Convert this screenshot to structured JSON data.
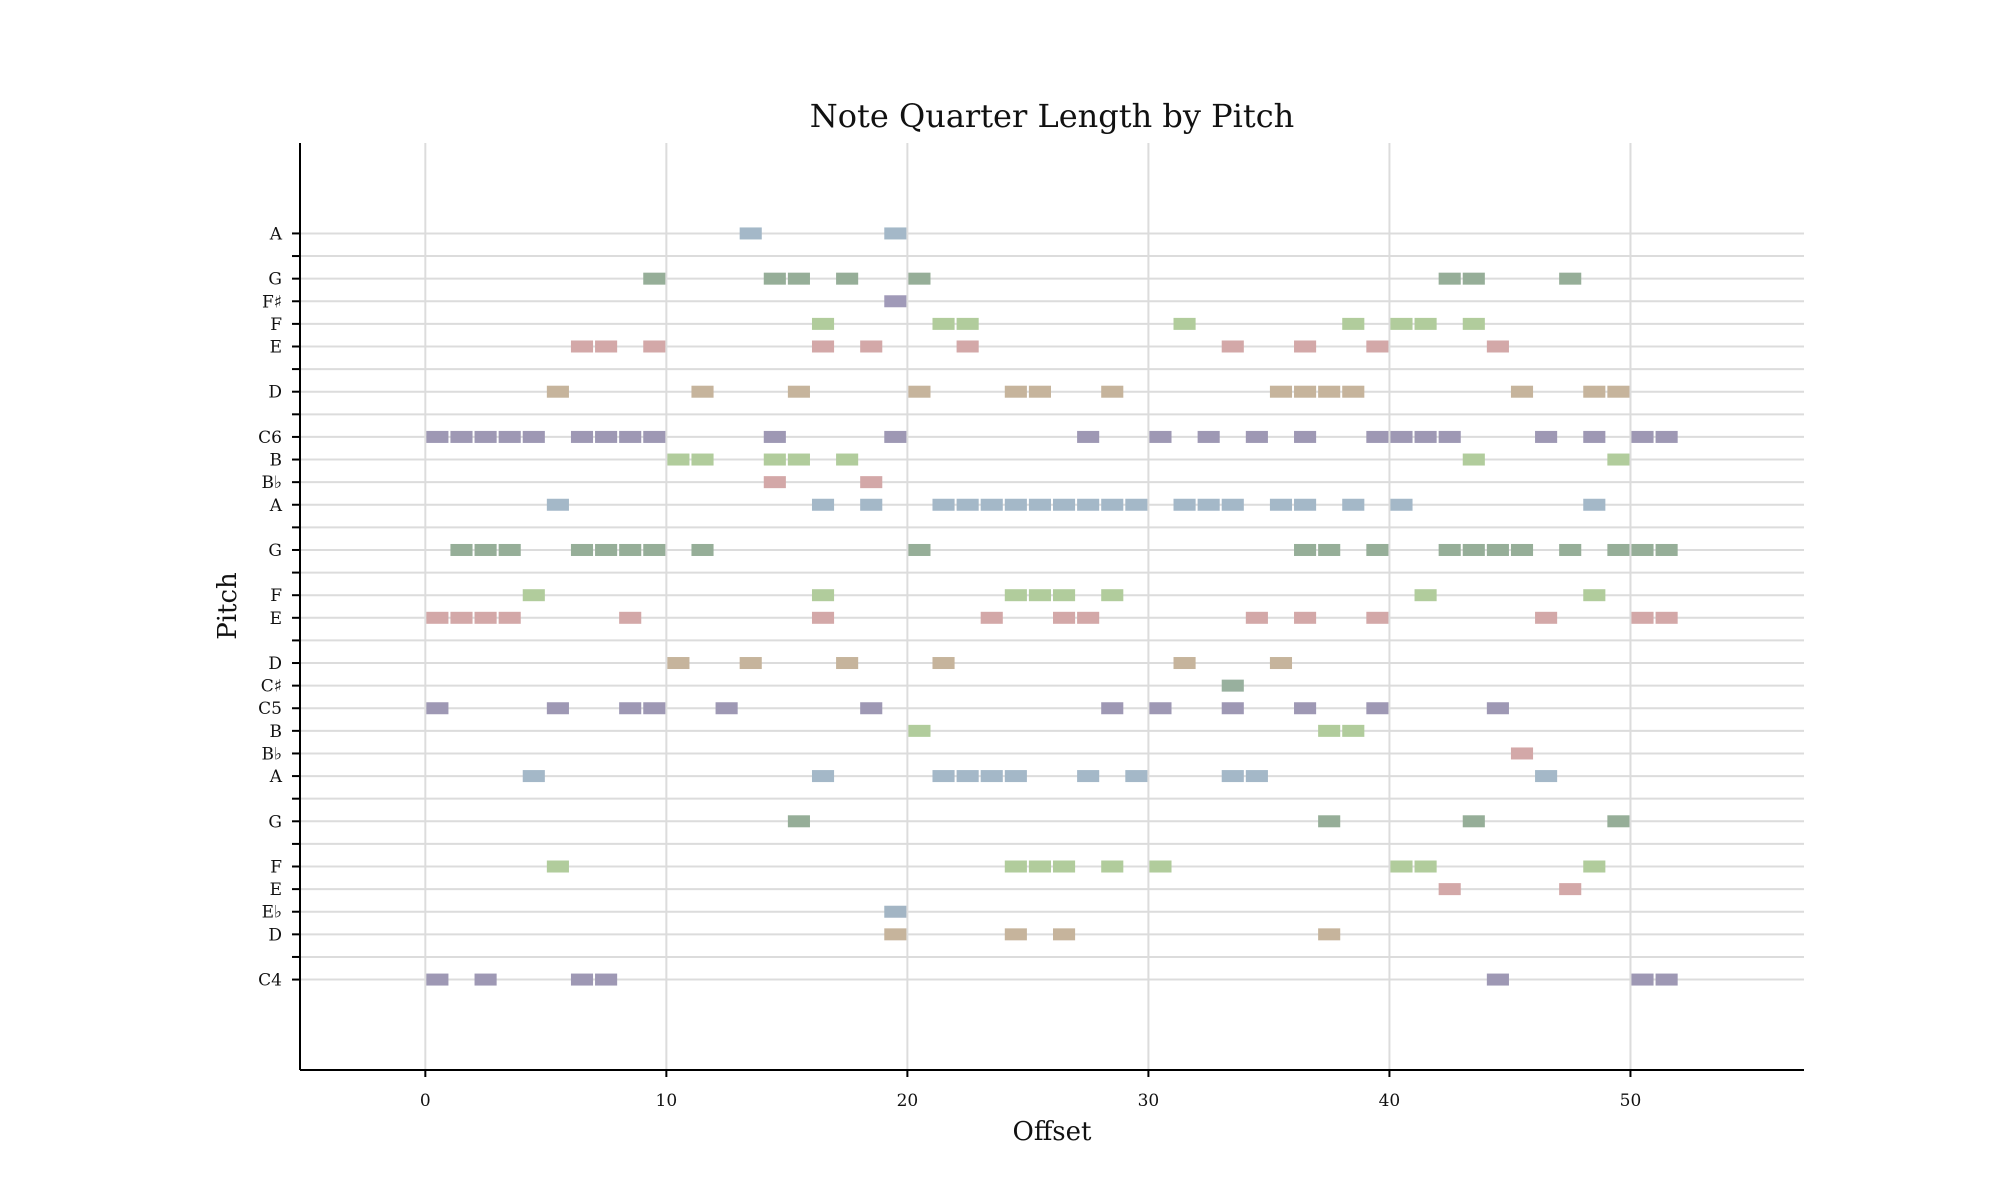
{
  "chart_data": {
    "type": "scatter",
    "title": "Note Quarter Length by Pitch",
    "xlabel": "Offset",
    "ylabel": "Pitch",
    "xlim": [
      -5.2,
      57.2
    ],
    "x_ticks": [
      0,
      10,
      20,
      30,
      40,
      50
    ],
    "ylim": [
      56,
      97
    ],
    "grid": true,
    "pitch_ticks": [
      {
        "midi": 60,
        "label": "C4"
      },
      {
        "midi": 61,
        "label": ""
      },
      {
        "midi": 62,
        "label": "D"
      },
      {
        "midi": 63,
        "label": "E♭"
      },
      {
        "midi": 64,
        "label": "E"
      },
      {
        "midi": 65,
        "label": "F"
      },
      {
        "midi": 66,
        "label": ""
      },
      {
        "midi": 67,
        "label": "G"
      },
      {
        "midi": 68,
        "label": ""
      },
      {
        "midi": 69,
        "label": "A"
      },
      {
        "midi": 70,
        "label": "B♭"
      },
      {
        "midi": 71,
        "label": "B"
      },
      {
        "midi": 72,
        "label": "C5"
      },
      {
        "midi": 73,
        "label": "C♯"
      },
      {
        "midi": 74,
        "label": "D"
      },
      {
        "midi": 75,
        "label": ""
      },
      {
        "midi": 76,
        "label": "E"
      },
      {
        "midi": 77,
        "label": "F"
      },
      {
        "midi": 78,
        "label": ""
      },
      {
        "midi": 79,
        "label": "G"
      },
      {
        "midi": 80,
        "label": ""
      },
      {
        "midi": 81,
        "label": "A"
      },
      {
        "midi": 82,
        "label": "B♭"
      },
      {
        "midi": 83,
        "label": "B"
      },
      {
        "midi": 84,
        "label": "C6"
      },
      {
        "midi": 85,
        "label": ""
      },
      {
        "midi": 86,
        "label": "D"
      },
      {
        "midi": 87,
        "label": ""
      },
      {
        "midi": 88,
        "label": "E"
      },
      {
        "midi": 89,
        "label": "F"
      },
      {
        "midi": 90,
        "label": "F♯"
      },
      {
        "midi": 91,
        "label": "G"
      },
      {
        "midi": 92,
        "label": ""
      },
      {
        "midi": 93,
        "label": "A"
      }
    ],
    "note_duration": 1.0,
    "pitch_class_colors": {
      "0": "#9e98b4",
      "1": "#98b09e",
      "2": "#c6b49c",
      "3": "#a3b5c4",
      "4": "#d3a8a8",
      "5": "#b1cc9c",
      "6": "#a09ab8",
      "7": "#96ae98",
      "8": "#a4b8c8",
      "9": "#a4b8c8",
      "10": "#d3a8a8",
      "11": "#b1cc9c"
    },
    "notes": [
      {
        "pitch": 93,
        "offsets": [
          13,
          19
        ]
      },
      {
        "pitch": 91,
        "offsets": [
          9,
          14,
          15,
          17,
          20,
          42,
          43,
          47
        ]
      },
      {
        "pitch": 90,
        "offsets": [
          19
        ]
      },
      {
        "pitch": 89,
        "offsets": [
          16,
          21,
          22,
          31,
          38,
          40,
          41,
          43
        ]
      },
      {
        "pitch": 88,
        "offsets": [
          6,
          7,
          9,
          16,
          18,
          22,
          33,
          36,
          39,
          44
        ]
      },
      {
        "pitch": 86,
        "offsets": [
          5,
          11,
          15,
          20,
          24,
          25,
          28,
          35,
          36,
          37,
          38,
          45,
          48,
          49
        ]
      },
      {
        "pitch": 84,
        "offsets": [
          0,
          1,
          2,
          3,
          4,
          6,
          7,
          8,
          9,
          14,
          19,
          27,
          30,
          32,
          34,
          36,
          39,
          40,
          41,
          42,
          46,
          48,
          50,
          51
        ]
      },
      {
        "pitch": 83,
        "offsets": [
          10,
          11,
          14,
          15,
          17,
          43,
          49
        ]
      },
      {
        "pitch": 82,
        "offsets": [
          14,
          18
        ]
      },
      {
        "pitch": 81,
        "offsets": [
          5,
          16,
          18,
          21,
          22,
          23,
          24,
          25,
          26,
          27,
          28,
          29,
          31,
          32,
          33,
          35,
          36,
          38,
          40,
          48
        ]
      },
      {
        "pitch": 79,
        "offsets": [
          1,
          2,
          3,
          6,
          7,
          8,
          9,
          11,
          20,
          36,
          37,
          39,
          42,
          43,
          44,
          45,
          47,
          49,
          50,
          51
        ]
      },
      {
        "pitch": 77,
        "offsets": [
          4,
          16,
          24,
          25,
          26,
          28,
          41,
          48
        ]
      },
      {
        "pitch": 76,
        "offsets": [
          0,
          1,
          2,
          3,
          8,
          16,
          23,
          26,
          27,
          34,
          36,
          39,
          46,
          50,
          51
        ]
      },
      {
        "pitch": 74,
        "offsets": [
          10,
          13,
          17,
          21,
          31,
          35
        ]
      },
      {
        "pitch": 73,
        "offsets": [
          33
        ]
      },
      {
        "pitch": 72,
        "offsets": [
          0,
          5,
          8,
          9,
          12,
          18,
          28,
          30,
          33,
          36,
          39,
          44
        ]
      },
      {
        "pitch": 71,
        "offsets": [
          20,
          37,
          38
        ]
      },
      {
        "pitch": 70,
        "offsets": [
          45
        ]
      },
      {
        "pitch": 69,
        "offsets": [
          4,
          16,
          21,
          22,
          23,
          24,
          27,
          29,
          33,
          34,
          46
        ]
      },
      {
        "pitch": 67,
        "offsets": [
          15,
          37,
          43,
          49
        ]
      },
      {
        "pitch": 65,
        "offsets": [
          5,
          24,
          25,
          26,
          28,
          30,
          40,
          41,
          48
        ]
      },
      {
        "pitch": 64,
        "offsets": [
          42,
          47
        ]
      },
      {
        "pitch": 63,
        "offsets": [
          19
        ]
      },
      {
        "pitch": 62,
        "offsets": [
          19,
          24,
          26,
          37
        ]
      },
      {
        "pitch": 60,
        "offsets": [
          0,
          2,
          6,
          7,
          44,
          50,
          51
        ]
      }
    ]
  }
}
